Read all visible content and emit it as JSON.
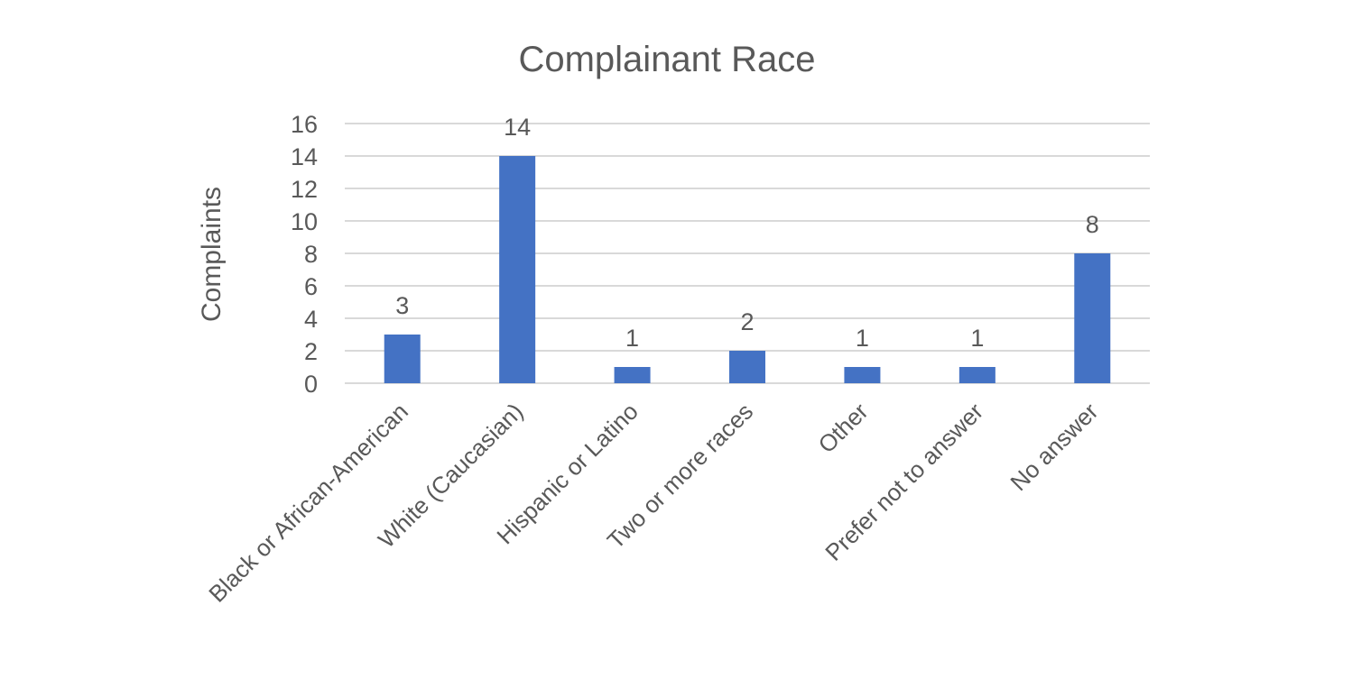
{
  "chart_data": {
    "type": "bar",
    "title": "Complainant Race",
    "xlabel": "",
    "ylabel": "Complaints",
    "categories": [
      "Black or African-American",
      "White (Caucasian)",
      "Hispanic or Latino",
      "Two or more races",
      "Other",
      "Prefer not to answer",
      "No answer"
    ],
    "values": [
      3,
      14,
      1,
      2,
      1,
      1,
      8
    ],
    "ylim": [
      0,
      16
    ],
    "yticks": [
      0,
      2,
      4,
      6,
      8,
      10,
      12,
      14,
      16
    ],
    "grid": true,
    "legend": "none",
    "bar_color": "#4472c4",
    "data_labels": true
  }
}
